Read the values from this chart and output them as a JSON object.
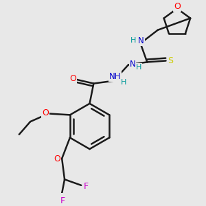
{
  "bg_color": "#e8e8e8",
  "bond_color": "#1a1a1a",
  "atom_colors": {
    "O": "#ff0000",
    "N": "#0000cc",
    "S": "#cccc00",
    "F": "#cc00cc",
    "H": "#009999",
    "C": "#1a1a1a"
  },
  "figsize": [
    3.0,
    3.0
  ],
  "dpi": 100
}
